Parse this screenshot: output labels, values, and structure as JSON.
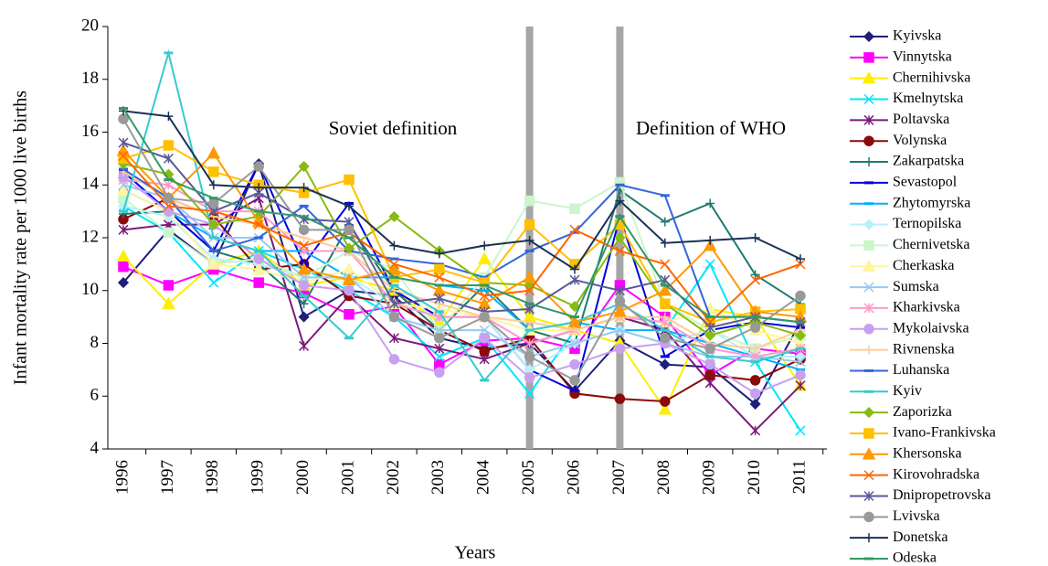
{
  "chart_data": {
    "type": "line",
    "y_label": "Infant mortality rate per 1000 live births",
    "x_label": "Years",
    "annotations": [
      "Soviet definition",
      "Definition of WHO"
    ],
    "categories": [
      "1996",
      "1997",
      "1998",
      "1999",
      "2000",
      "2001",
      "2002",
      "2003",
      "2004",
      "2005",
      "2006",
      "2007",
      "2008",
      "2009",
      "2010",
      "2011"
    ],
    "ylim": [
      4,
      20
    ],
    "yticks": [
      4,
      6,
      8,
      10,
      12,
      14,
      16,
      18,
      20
    ],
    "grid": false,
    "legend": "right",
    "series": [
      {
        "name": "Kyivska",
        "color": "#1f1f7a",
        "marker": "diamond",
        "values": [
          10.3,
          12.3,
          11.0,
          14.8,
          9.0,
          10.0,
          9.8,
          8.2,
          7.8,
          8.0,
          6.2,
          8.1,
          7.2,
          7.1,
          5.7,
          8.8
        ]
      },
      {
        "name": "Vinnytska",
        "color": "#ff00ff",
        "marker": "square",
        "values": [
          10.9,
          10.2,
          10.8,
          10.3,
          9.9,
          9.1,
          9.4,
          7.2,
          8.1,
          8.2,
          7.8,
          10.2,
          9.0,
          6.8,
          7.8,
          7.6
        ]
      },
      {
        "name": "Chernihivska",
        "color": "#ffee00",
        "marker": "triangle",
        "values": [
          11.3,
          9.5,
          11.0,
          11.5,
          10.2,
          10.5,
          10.0,
          8.8,
          11.2,
          9.0,
          8.5,
          8.0,
          5.5,
          9.3,
          9.0,
          6.4
        ]
      },
      {
        "name": "Kmelnytska",
        "color": "#00e5ff",
        "marker": "x",
        "values": [
          13.2,
          12.2,
          10.3,
          11.5,
          10.8,
          10.0,
          9.0,
          7.5,
          8.2,
          6.1,
          8.5,
          9.0,
          8.5,
          11.0,
          7.3,
          4.7
        ]
      },
      {
        "name": "Poltavska",
        "color": "#7a1a7a",
        "marker": "star",
        "values": [
          12.3,
          12.5,
          12.5,
          13.5,
          7.9,
          9.8,
          8.2,
          7.8,
          7.4,
          8.0,
          8.5,
          9.0,
          8.5,
          6.5,
          4.7,
          6.4
        ]
      },
      {
        "name": "Volynska",
        "color": "#8b0a0a",
        "marker": "circle",
        "values": [
          12.7,
          13.5,
          12.8,
          10.8,
          11.0,
          9.8,
          9.5,
          8.5,
          7.7,
          8.2,
          6.1,
          5.9,
          5.8,
          6.8,
          6.6,
          7.4
        ]
      },
      {
        "name": "Zakarpatska",
        "color": "#1f7a70",
        "marker": "plus",
        "values": [
          12.9,
          13.0,
          11.5,
          11.0,
          9.5,
          12.5,
          10.0,
          8.5,
          10.2,
          8.5,
          8.0,
          13.8,
          12.6,
          13.3,
          10.6,
          9.5
        ]
      },
      {
        "name": "Sevastopol",
        "color": "#0000e0",
        "marker": "dash",
        "values": [
          14.5,
          13.0,
          11.5,
          14.8,
          11.0,
          13.3,
          10.0,
          9.0,
          9.0,
          7.0,
          6.2,
          12.8,
          7.5,
          8.5,
          8.8,
          8.6
        ]
      },
      {
        "name": "Zhytomyrska",
        "color": "#00b0ff",
        "marker": "dash",
        "values": [
          13.8,
          13.0,
          12.0,
          11.5,
          11.5,
          10.5,
          10.5,
          10.2,
          10.0,
          8.5,
          8.8,
          8.5,
          8.5,
          8.0,
          7.5,
          7.0
        ]
      },
      {
        "name": "Ternopilska",
        "color": "#b8f0ff",
        "marker": "diamond",
        "values": [
          13.2,
          12.8,
          11.2,
          11.0,
          10.5,
          10.5,
          9.5,
          9.0,
          9.0,
          7.0,
          8.0,
          8.5,
          8.0,
          8.5,
          7.5,
          7.5
        ]
      },
      {
        "name": "Chernivetska",
        "color": "#ccf5cc",
        "marker": "square",
        "values": [
          13.5,
          12.2,
          11.0,
          11.2,
          10.5,
          11.5,
          10.8,
          8.5,
          10.5,
          13.4,
          13.1,
          14.1,
          9.5,
          8.5,
          7.8,
          8.3
        ]
      },
      {
        "name": "Cherkaska",
        "color": "#fff5a0",
        "marker": "triangle",
        "values": [
          13.8,
          13.0,
          11.0,
          10.8,
          10.3,
          10.8,
          9.5,
          9.3,
          9.0,
          8.5,
          8.5,
          9.0,
          8.8,
          9.3,
          8.5,
          8.0
        ]
      },
      {
        "name": "Sumska",
        "color": "#99c8f0",
        "marker": "x",
        "values": [
          14.0,
          13.5,
          12.0,
          12.0,
          10.5,
          10.5,
          9.0,
          8.5,
          8.5,
          7.5,
          8.0,
          8.5,
          8.0,
          7.5,
          7.5,
          7.3
        ]
      },
      {
        "name": "Kharkivska",
        "color": "#ff99cc",
        "marker": "star",
        "values": [
          14.2,
          14.0,
          13.0,
          13.0,
          11.5,
          11.5,
          9.5,
          9.0,
          9.0,
          8.0,
          8.5,
          9.0,
          8.8,
          7.8,
          7.5,
          7.8
        ]
      },
      {
        "name": "Mykolaivska",
        "color": "#c8a0f0",
        "marker": "circle",
        "values": [
          14.3,
          13.0,
          12.5,
          11.2,
          10.2,
          10.0,
          7.4,
          6.9,
          8.2,
          6.7,
          7.2,
          7.8,
          8.0,
          7.2,
          6.1,
          6.8
        ]
      },
      {
        "name": "Rivnenska",
        "color": "#ffcc99",
        "marker": "plus",
        "values": [
          14.5,
          13.5,
          12.8,
          12.5,
          12.0,
          11.5,
          10.0,
          9.5,
          9.0,
          8.8,
          8.5,
          9.0,
          9.0,
          8.0,
          7.8,
          8.5
        ]
      },
      {
        "name": "Luhanska",
        "color": "#3366dd",
        "marker": "dash",
        "values": [
          14.6,
          13.5,
          11.5,
          12.0,
          13.2,
          11.5,
          11.2,
          11.0,
          10.5,
          11.5,
          12.2,
          14.0,
          13.6,
          9.0,
          9.0,
          8.8
        ]
      },
      {
        "name": "Kyiv",
        "color": "#33cccc",
        "marker": "dash",
        "values": [
          13.0,
          19.0,
          12.0,
          11.5,
          9.8,
          8.2,
          10.2,
          9.2,
          6.6,
          8.5,
          8.8,
          9.5,
          8.5,
          7.5,
          7.3,
          7.8
        ]
      },
      {
        "name": "Zaporizka",
        "color": "#88bb11",
        "marker": "diamond",
        "values": [
          14.8,
          14.4,
          12.5,
          12.8,
          14.7,
          11.6,
          12.8,
          11.5,
          10.3,
          10.2,
          9.4,
          12.0,
          9.5,
          8.3,
          8.8,
          8.3
        ]
      },
      {
        "name": "Ivano-Frankivska",
        "color": "#ffc000",
        "marker": "square",
        "values": [
          15.0,
          15.5,
          14.5,
          14.0,
          13.7,
          14.2,
          10.5,
          10.8,
          10.3,
          12.5,
          11.0,
          12.5,
          9.5,
          8.8,
          9.2,
          9.3
        ]
      },
      {
        "name": "Khersonska",
        "color": "#ff9900",
        "marker": "triangle",
        "values": [
          15.3,
          13.5,
          15.2,
          12.6,
          10.8,
          10.4,
          10.8,
          10.0,
          9.5,
          10.5,
          8.8,
          9.2,
          10.0,
          11.7,
          9.2,
          9.0
        ]
      },
      {
        "name": "Kirovohradska",
        "color": "#ff6600",
        "marker": "x",
        "values": [
          15.1,
          13.2,
          13.0,
          12.5,
          11.7,
          12.2,
          11.0,
          10.5,
          9.8,
          10.0,
          12.3,
          11.5,
          11.0,
          8.8,
          10.4,
          11.0
        ]
      },
      {
        "name": "Dnipropetrovska",
        "color": "#5a5a99",
        "marker": "star",
        "values": [
          15.6,
          15.0,
          13.0,
          13.7,
          12.7,
          12.6,
          9.5,
          9.7,
          9.2,
          9.3,
          10.4,
          10.0,
          10.4,
          8.6,
          9.0,
          8.8
        ]
      },
      {
        "name": "Lvivska",
        "color": "#999999",
        "marker": "circle",
        "values": [
          16.5,
          13.5,
          13.3,
          14.7,
          12.3,
          12.3,
          9.0,
          8.2,
          9.0,
          7.5,
          6.6,
          9.6,
          8.2,
          7.8,
          8.6,
          9.8
        ]
      },
      {
        "name": "Donetska",
        "color": "#1a3355",
        "marker": "plus",
        "values": [
          16.8,
          16.6,
          14.0,
          13.9,
          13.9,
          13.2,
          11.7,
          11.4,
          11.7,
          11.9,
          10.8,
          13.4,
          11.8,
          11.9,
          12.0,
          11.2
        ]
      },
      {
        "name": "Odeska",
        "color": "#339966",
        "marker": "dash",
        "values": [
          16.9,
          14.2,
          13.5,
          13.0,
          12.8,
          12.0,
          10.5,
          10.2,
          10.2,
          9.5,
          9.0,
          12.8,
          10.2,
          9.0,
          9.0,
          8.8
        ]
      }
    ]
  }
}
